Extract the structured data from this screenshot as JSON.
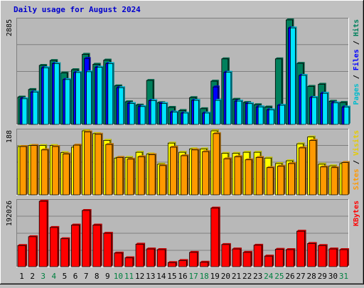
{
  "chart_data": {
    "type": "bar",
    "title": "Daily usage for August 2024",
    "categories": [
      "1",
      "2",
      "3",
      "4",
      "5",
      "6",
      "7",
      "8",
      "9",
      "10",
      "11",
      "12",
      "13",
      "14",
      "15",
      "16",
      "17",
      "18",
      "19",
      "20",
      "21",
      "22",
      "23",
      "24",
      "25",
      "26",
      "27",
      "28",
      "29",
      "30",
      "31"
    ],
    "weekend_days": [
      "3",
      "4",
      "10",
      "11",
      "17",
      "18",
      "24",
      "25",
      "31"
    ],
    "panels": [
      {
        "id": "hits-files-pages",
        "ylabel_parts": [
          "Pages",
          "Files",
          "Hits"
        ],
        "max_label": "2885",
        "ymax": 2885,
        "series": [
          {
            "name": "Hits",
            "color": "#00805c",
            "values": [
              755,
              965,
              1630,
              1765,
              1420,
              1510,
              1935,
              1660,
              1775,
              1065,
              625,
              535,
              1215,
              600,
              470,
              385,
              740,
              435,
              1195,
              1810,
              695,
              605,
              545,
              480,
              1810,
              2885,
              1685,
              1050,
              1110,
              640,
              605
            ]
          },
          {
            "name": "Files",
            "color": "#0000ff",
            "values": [
              710,
              895,
              1565,
              1680,
              1240,
              1435,
              1820,
              1580,
              1680,
              1015,
              580,
              495,
              660,
              580,
              340,
              315,
              665,
              315,
              1035,
              1440,
              645,
              575,
              485,
              405,
              530,
              2665,
              1355,
              745,
              860,
              595,
              480
            ]
          },
          {
            "name": "Pages",
            "color": "#00e5ff",
            "values": [
              710,
              895,
              1565,
              1680,
              1240,
              1435,
              1455,
              1580,
              1680,
              1015,
              580,
              495,
              660,
              580,
              340,
              315,
              665,
              315,
              665,
              1440,
              645,
              575,
              485,
              405,
              530,
              2665,
              1355,
              745,
              860,
              595,
              480
            ]
          }
        ]
      },
      {
        "id": "visits-sites",
        "ylabel_parts": [
          "Sites",
          "Visits"
        ],
        "max_label": "188",
        "ymax": 188,
        "series": [
          {
            "name": "Visits",
            "color": "#ffff00",
            "values": [
              142,
              145,
              145,
              145,
              124,
              140,
              188,
              180,
              160,
              108,
              110,
              125,
              120,
              90,
              152,
              125,
              135,
              135,
              188,
              122,
              122,
              125,
              125,
              108,
              92,
              100,
              150,
              170,
              90,
              85,
              92
            ]
          },
          {
            "name": "Sites",
            "color": "#ff9900",
            "values": [
              142,
              145,
              132,
              142,
              120,
              146,
              185,
              178,
              148,
              110,
              105,
              112,
              118,
              86,
              140,
              115,
              132,
              127,
              180,
              106,
              112,
              103,
              110,
              80,
              84,
              92,
              138,
              160,
              82,
              80,
              95
            ]
          }
        ]
      },
      {
        "id": "kbytes",
        "ylabel_parts": [
          "KBytes"
        ],
        "max_label": "192026",
        "ymax": 192026,
        "series": [
          {
            "name": "KBytes",
            "color": "#ff0000",
            "values": [
              62000,
              88000,
              192026,
              115000,
              82000,
              122000,
              165000,
              122000,
              98000,
              40000,
              26000,
              66000,
              52000,
              50000,
              12000,
              18000,
              42000,
              13000,
              172000,
              65000,
              52000,
              42000,
              63000,
              31000,
              51000,
              50000,
              104000,
              68000,
              62000,
              52000,
              50000
            ]
          }
        ]
      }
    ]
  }
}
